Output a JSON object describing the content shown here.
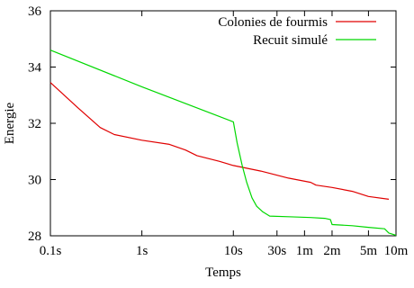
{
  "chart_data": {
    "type": "line",
    "xlabel": "Temps",
    "ylabel": "Energie",
    "x_scale": "log",
    "x_unit": "seconds",
    "xlim": [
      0.1,
      600
    ],
    "ylim": [
      28,
      36
    ],
    "x_ticks": [
      {
        "value": 0.1,
        "label": "0.1s"
      },
      {
        "value": 1,
        "label": "1s"
      },
      {
        "value": 10,
        "label": "10s"
      },
      {
        "value": 30,
        "label": "30s"
      },
      {
        "value": 60,
        "label": "1m"
      },
      {
        "value": 120,
        "label": "2m"
      },
      {
        "value": 300,
        "label": "5m"
      },
      {
        "value": 600,
        "label": "10m"
      }
    ],
    "y_ticks": [
      {
        "value": 28,
        "label": "28"
      },
      {
        "value": 30,
        "label": "30"
      },
      {
        "value": 32,
        "label": "32"
      },
      {
        "value": 34,
        "label": "34"
      },
      {
        "value": 36,
        "label": "36"
      }
    ],
    "grid": false,
    "legend_position": "top-right",
    "series": [
      {
        "name": "Colonies de fourmis",
        "color": "#e00000",
        "points": [
          [
            0.1,
            33.45
          ],
          [
            0.2,
            32.55
          ],
          [
            0.35,
            31.85
          ],
          [
            0.5,
            31.6
          ],
          [
            1,
            31.4
          ],
          [
            2,
            31.25
          ],
          [
            3,
            31.05
          ],
          [
            4,
            30.85
          ],
          [
            7,
            30.65
          ],
          [
            10,
            30.5
          ],
          [
            20,
            30.3
          ],
          [
            40,
            30.05
          ],
          [
            70,
            29.9
          ],
          [
            80,
            29.8
          ],
          [
            120,
            29.72
          ],
          [
            200,
            29.58
          ],
          [
            300,
            29.4
          ],
          [
            500,
            29.3
          ]
        ]
      },
      {
        "name": "Recuit simulé",
        "color": "#00d800",
        "points": [
          [
            0.1,
            34.6
          ],
          [
            1,
            33.3
          ],
          [
            10,
            32.05
          ],
          [
            11,
            31.3
          ],
          [
            12.5,
            30.5
          ],
          [
            14,
            29.9
          ],
          [
            16,
            29.35
          ],
          [
            18,
            29.05
          ],
          [
            21,
            28.85
          ],
          [
            25,
            28.7
          ],
          [
            40,
            28.68
          ],
          [
            70,
            28.65
          ],
          [
            100,
            28.62
          ],
          [
            115,
            28.58
          ],
          [
            120,
            28.4
          ],
          [
            200,
            28.36
          ],
          [
            300,
            28.3
          ],
          [
            450,
            28.25
          ],
          [
            500,
            28.1
          ],
          [
            600,
            28.02
          ]
        ]
      }
    ]
  }
}
